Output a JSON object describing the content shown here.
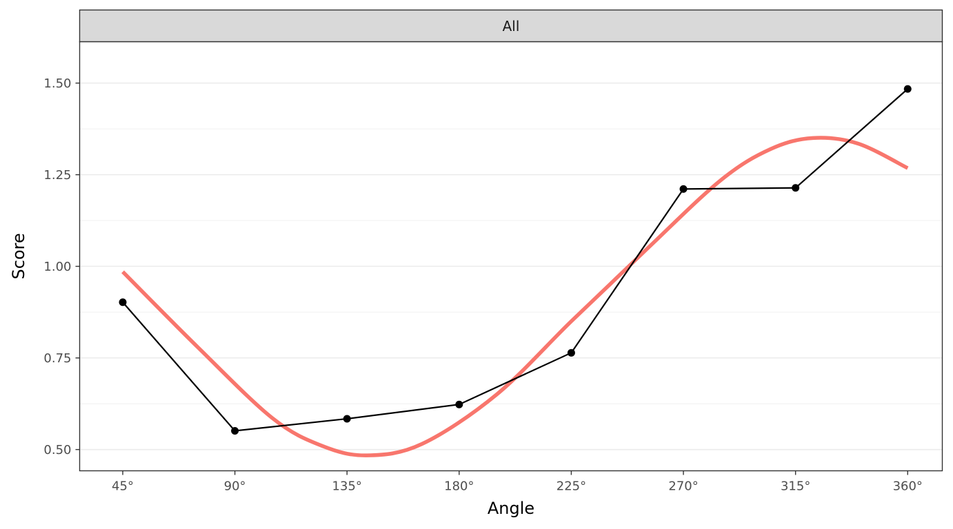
{
  "chart_data": {
    "type": "line",
    "facet_label": "All",
    "xlabel": "Angle",
    "ylabel": "Score",
    "x_tick_labels": [
      "45°",
      "90°",
      "135°",
      "180°",
      "225°",
      "270°",
      "315°",
      "360°"
    ],
    "y_tick_labels": [
      "0.50",
      "0.75",
      "1.00",
      "1.25",
      "1.50"
    ],
    "y_ticks": [
      0.5,
      0.75,
      1.0,
      1.25,
      1.5
    ],
    "xlim": [
      27.7,
      373.9
    ],
    "ylim": [
      0.442,
      1.613
    ],
    "grid": true,
    "series": [
      {
        "style": "line-with-points",
        "x": [
          45,
          90,
          135,
          180,
          225,
          270,
          315,
          360
        ],
        "y": [
          0.902,
          0.551,
          0.584,
          0.623,
          0.764,
          1.211,
          1.214,
          1.484
        ]
      },
      {
        "style": "smooth-curve",
        "x": [
          45,
          75,
          105,
          125,
          143,
          165,
          195,
          225,
          255,
          285,
          305,
          322,
          340,
          360
        ],
        "y": [
          0.985,
          0.78,
          0.586,
          0.51,
          0.484,
          0.515,
          0.65,
          0.85,
          1.045,
          1.235,
          1.32,
          1.35,
          1.335,
          1.268
        ]
      }
    ],
    "colors": {
      "panel_border": "#333333",
      "strip_fill": "#d9d9d9",
      "grid": "#ebebeb",
      "line": "#000000",
      "smooth": "#f8766d"
    }
  }
}
